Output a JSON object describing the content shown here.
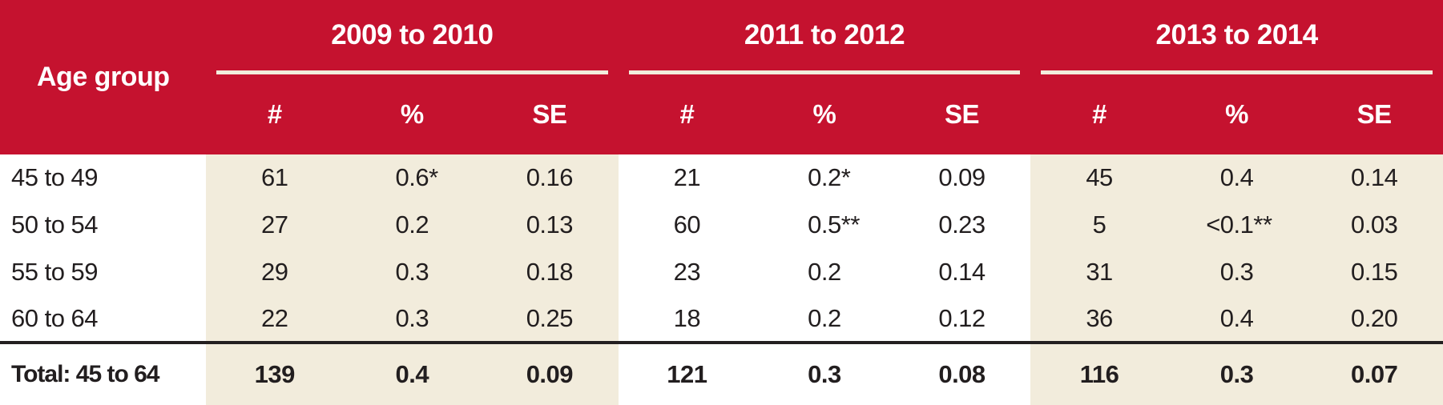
{
  "colors": {
    "header_background_red": "#C5122F",
    "column_band_beige": "#F2ECDC",
    "header_underline_cream": "#F2ECDC",
    "header_text_white": "#FFFFFF",
    "body_text_black": "#221E1F",
    "total_rule_black": "#231F20"
  },
  "chart_data": {
    "type": "table",
    "row_header_label": "Age group",
    "column_groups": [
      "2009 to 2010",
      "2011 to 2012",
      "2013 to 2014"
    ],
    "subcolumns": [
      "#",
      "%",
      "SE"
    ],
    "rows": [
      [
        "45 to 49",
        "61",
        "0.6*",
        "0.16",
        "21",
        "0.2*",
        "0.09",
        "45",
        "0.4",
        "0.14"
      ],
      [
        "50 to 54",
        "27",
        "0.2",
        "0.13",
        "60",
        "0.5**",
        "0.23",
        "5",
        "<0.1**",
        "0.03"
      ],
      [
        "55 to 59",
        "29",
        "0.3",
        "0.18",
        "23",
        "0.2",
        "0.14",
        "31",
        "0.3",
        "0.15"
      ],
      [
        "60 to 64",
        "22",
        "0.3",
        "0.25",
        "18",
        "0.2",
        "0.12",
        "36",
        "0.4",
        "0.20"
      ],
      [
        "Total: 45 to 64",
        "139",
        "0.4",
        "0.09",
        "121",
        "0.3",
        "0.08",
        "116",
        "0.3",
        "0.07"
      ]
    ],
    "layout": {
      "grid": "off",
      "column_band_pattern": [
        "plain",
        "beige",
        "plain",
        "beige"
      ],
      "total_row_bold": true
    }
  }
}
